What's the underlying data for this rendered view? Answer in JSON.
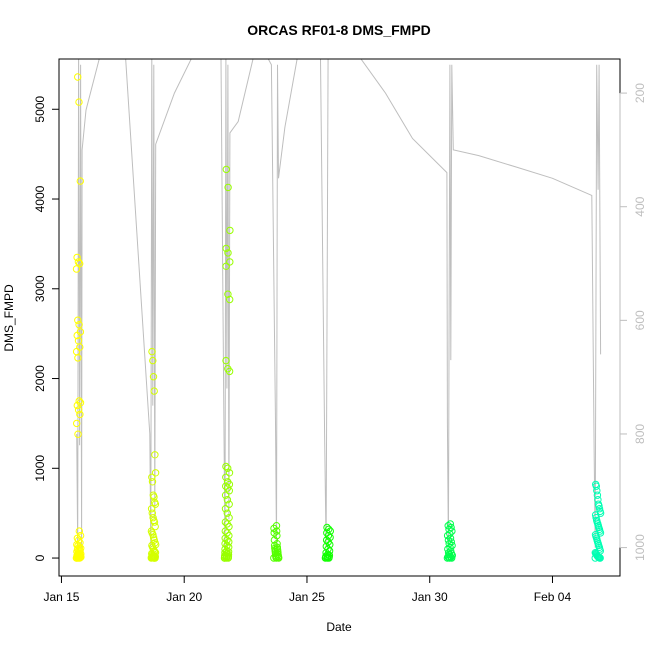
{
  "chart_data": {
    "type": "scatter",
    "title": "ORCAS RF01-8 DMS_FMPD",
    "xlabel": "Date",
    "ylabel": "DMS_FMPD",
    "x_ticks": [
      {
        "label": "Jan 15",
        "day": 15.0
      },
      {
        "label": "Jan 20",
        "day": 20.0
      },
      {
        "label": "Jan 25",
        "day": 25.0
      },
      {
        "label": "Jan 30",
        "day": 30.0
      },
      {
        "label": "Feb 04",
        "day": 35.0
      }
    ],
    "xlim_day": [
      14.9,
      37.75
    ],
    "ylim": [
      -200,
      5560
    ],
    "y_ticks": [
      0,
      1000,
      2000,
      3000,
      4000,
      5000
    ],
    "y2": {
      "label": "",
      "ticks": [
        200,
        400,
        600,
        800,
        1000
      ],
      "range": [
        1050,
        140
      ],
      "color": "#bebebe"
    },
    "altitude_trace": [
      [
        15.62,
        800
      ],
      [
        15.66,
        1000
      ],
      [
        15.7,
        120
      ],
      [
        15.74,
        820
      ],
      [
        15.78,
        150
      ],
      [
        15.82,
        1000
      ],
      [
        15.84,
        300
      ],
      [
        16.0,
        230
      ],
      [
        16.6,
        130
      ],
      [
        17.2,
        130
      ],
      [
        17.6,
        130
      ],
      [
        18.6,
        800
      ],
      [
        18.64,
        1000
      ],
      [
        18.68,
        130
      ],
      [
        18.72,
        750
      ],
      [
        18.76,
        150
      ],
      [
        18.8,
        950
      ],
      [
        18.84,
        290
      ],
      [
        19.6,
        200
      ],
      [
        20.4,
        130
      ],
      [
        21.1,
        130
      ],
      [
        21.5,
        140
      ],
      [
        21.62,
        800
      ],
      [
        21.66,
        1000
      ],
      [
        21.7,
        140
      ],
      [
        21.74,
        720
      ],
      [
        21.78,
        150
      ],
      [
        21.82,
        950
      ],
      [
        21.86,
        270
      ],
      [
        22.2,
        250
      ],
      [
        22.8,
        140
      ],
      [
        23.3,
        130
      ],
      [
        23.55,
        150
      ],
      [
        23.72,
        780
      ],
      [
        23.76,
        1000
      ],
      [
        23.8,
        150
      ],
      [
        23.84,
        350
      ],
      [
        24.1,
        260
      ],
      [
        24.6,
        140
      ],
      [
        25.1,
        130
      ],
      [
        25.55,
        140
      ],
      [
        25.72,
        800
      ],
      [
        25.78,
        1000
      ],
      [
        25.86,
        130
      ],
      [
        26.4,
        130
      ],
      [
        27.2,
        140
      ],
      [
        28.2,
        200
      ],
      [
        29.3,
        280
      ],
      [
        30.7,
        340
      ],
      [
        30.72,
        780
      ],
      [
        30.76,
        1000
      ],
      [
        30.82,
        150
      ],
      [
        30.86,
        670
      ],
      [
        30.9,
        150
      ],
      [
        30.96,
        300
      ],
      [
        32.0,
        310
      ],
      [
        33.5,
        330
      ],
      [
        35.0,
        350
      ],
      [
        36.6,
        380
      ],
      [
        36.7,
        840
      ],
      [
        36.74,
        1000
      ],
      [
        36.8,
        150
      ],
      [
        36.86,
        370
      ],
      [
        36.9,
        150
      ],
      [
        36.96,
        660
      ]
    ],
    "series": [
      {
        "x_day": 15.7,
        "spread": 0.18,
        "color": "#ffff00",
        "values": [
          0,
          0,
          0,
          0,
          5,
          8,
          10,
          12,
          15,
          20,
          25,
          30,
          35,
          40,
          45,
          50,
          60,
          70,
          80,
          90,
          100,
          110,
          120,
          140,
          150,
          170,
          200,
          220,
          250,
          300,
          1380,
          1500,
          1600,
          1650,
          1700,
          1730,
          1750,
          2230,
          2300,
          2350,
          2420,
          2480,
          2520,
          2600,
          2650,
          3220,
          3280,
          3300,
          3350,
          4200,
          5080,
          5360
        ]
      },
      {
        "x_day": 18.75,
        "spread": 0.18,
        "color": "#d4ff00",
        "values": [
          0,
          0,
          0,
          0,
          3,
          5,
          10,
          15,
          20,
          25,
          30,
          40,
          50,
          60,
          70,
          80,
          100,
          120,
          140,
          150,
          170,
          200,
          230,
          260,
          280,
          300,
          350,
          400,
          420,
          450,
          500,
          550,
          600,
          620,
          680,
          700,
          850,
          900,
          950,
          1150,
          1860,
          2020,
          2200,
          2300
        ]
      },
      {
        "x_day": 21.75,
        "spread": 0.22,
        "color": "#99ff00",
        "values": [
          0,
          0,
          0,
          0,
          5,
          10,
          15,
          20,
          25,
          30,
          40,
          50,
          60,
          70,
          80,
          100,
          120,
          140,
          160,
          180,
          200,
          220,
          250,
          280,
          300,
          350,
          380,
          400,
          450,
          500,
          550,
          600,
          650,
          700,
          750,
          780,
          800,
          820,
          850,
          900,
          950,
          1000,
          1020,
          2080,
          2110,
          2200,
          2880,
          2940,
          3250,
          3300,
          3400,
          3450,
          3650,
          4130,
          4330
        ]
      },
      {
        "x_day": 23.75,
        "spread": 0.2,
        "color": "#55ff00",
        "values": [
          0,
          0,
          0,
          5,
          10,
          15,
          20,
          30,
          40,
          50,
          60,
          70,
          80,
          90,
          100,
          110,
          120,
          140,
          160,
          200,
          250,
          280,
          300,
          330,
          360
        ]
      },
      {
        "x_day": 25.85,
        "spread": 0.2,
        "color": "#11ff00",
        "values": [
          0,
          0,
          0,
          5,
          10,
          15,
          20,
          30,
          40,
          60,
          80,
          100,
          130,
          150,
          180,
          200,
          230,
          250,
          280,
          300,
          320,
          340
        ]
      },
      {
        "x_day": 30.82,
        "spread": 0.2,
        "color": "#00ff4d",
        "values": [
          0,
          0,
          0,
          5,
          10,
          15,
          20,
          30,
          40,
          50,
          60,
          80,
          100,
          120,
          140,
          160,
          180,
          200,
          220,
          250,
          270,
          300,
          320,
          340,
          360,
          380
        ]
      },
      {
        "x_day": 36.85,
        "spread": 0.22,
        "color": "#00ffb3",
        "values": [
          0,
          0,
          0,
          5,
          10,
          15,
          20,
          30,
          40,
          50,
          60,
          80,
          100,
          120,
          140,
          160,
          180,
          200,
          220,
          240,
          260,
          280,
          300,
          320,
          340,
          360,
          380,
          400,
          420,
          450,
          480,
          500,
          520,
          550,
          580,
          600,
          650,
          700,
          750,
          800,
          820
        ]
      }
    ],
    "legend": false,
    "grid": false
  }
}
